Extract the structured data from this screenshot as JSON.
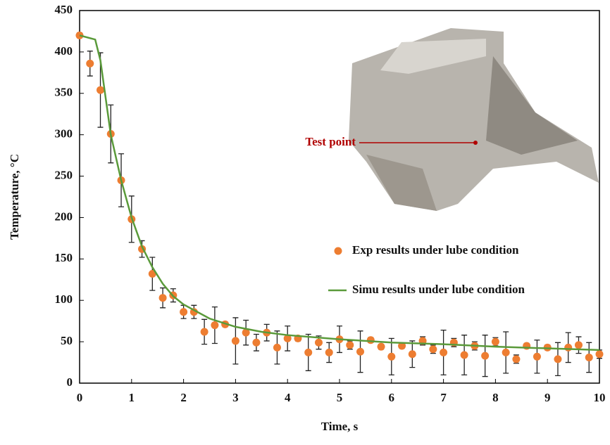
{
  "chart_data": {
    "type": "scatter",
    "xlabel": "Time, s",
    "ylabel": "Temperature, °C",
    "xlim": [
      0,
      10
    ],
    "xticks": [
      0,
      1,
      2,
      3,
      4,
      5,
      6,
      7,
      8,
      9,
      10
    ],
    "ylim": [
      0,
      450
    ],
    "yticks": [
      0,
      50,
      100,
      150,
      200,
      250,
      300,
      350,
      400,
      450
    ],
    "annotation": "Test point",
    "series": [
      {
        "name": "Exp results under lube condition",
        "type": "scatter",
        "color": "#ed7d31",
        "x": [
          0,
          0.2,
          0.4,
          0.6,
          0.8,
          1.0,
          1.2,
          1.4,
          1.6,
          1.8,
          2.0,
          2.2,
          2.4,
          2.6,
          2.8,
          3.0,
          3.2,
          3.4,
          3.6,
          3.8,
          4.0,
          4.2,
          4.4,
          4.6,
          4.8,
          5.0,
          5.2,
          5.4,
          5.6,
          5.8,
          6.0,
          6.2,
          6.4,
          6.6,
          6.8,
          7.0,
          7.2,
          7.4,
          7.6,
          7.8,
          8.0,
          8.2,
          8.4,
          8.6,
          8.8,
          9.0,
          9.2,
          9.4,
          9.6,
          9.8,
          10.0
        ],
        "values": [
          420,
          386,
          354,
          301,
          245,
          198,
          162,
          132,
          103,
          106,
          86,
          86,
          62,
          70,
          71,
          51,
          61,
          49,
          61,
          43,
          54,
          54,
          37,
          49,
          37,
          53,
          46,
          38,
          52,
          44,
          32,
          45,
          35,
          51,
          41,
          37,
          49,
          34,
          45,
          33,
          50,
          37,
          29,
          45,
          32,
          43,
          29,
          43,
          46,
          31,
          35
        ],
        "errors": [
          3,
          15,
          45,
          35,
          32,
          28,
          10,
          20,
          12,
          8,
          8,
          8,
          15,
          22,
          3,
          28,
          15,
          10,
          10,
          20,
          15,
          3,
          22,
          8,
          12,
          16,
          5,
          25,
          3,
          3,
          22,
          3,
          16,
          5,
          5,
          27,
          5,
          24,
          5,
          25,
          5,
          25,
          5,
          3,
          20,
          3,
          20,
          18,
          10,
          18,
          5
        ]
      },
      {
        "name": "Simu results under lube condition",
        "type": "line",
        "color": "#5a9a3a",
        "x": [
          0,
          0.3,
          0.4,
          0.6,
          0.8,
          1.0,
          1.2,
          1.4,
          1.6,
          1.8,
          2.0,
          2.5,
          3.0,
          3.5,
          4.0,
          5.0,
          6.0,
          7.0,
          8.0,
          9.0,
          10.0
        ],
        "values": [
          420,
          415,
          390,
          300,
          245,
          200,
          165,
          140,
          120,
          105,
          95,
          78,
          68,
          62,
          58,
          53,
          49,
          47,
          44,
          42,
          40
        ]
      }
    ]
  }
}
